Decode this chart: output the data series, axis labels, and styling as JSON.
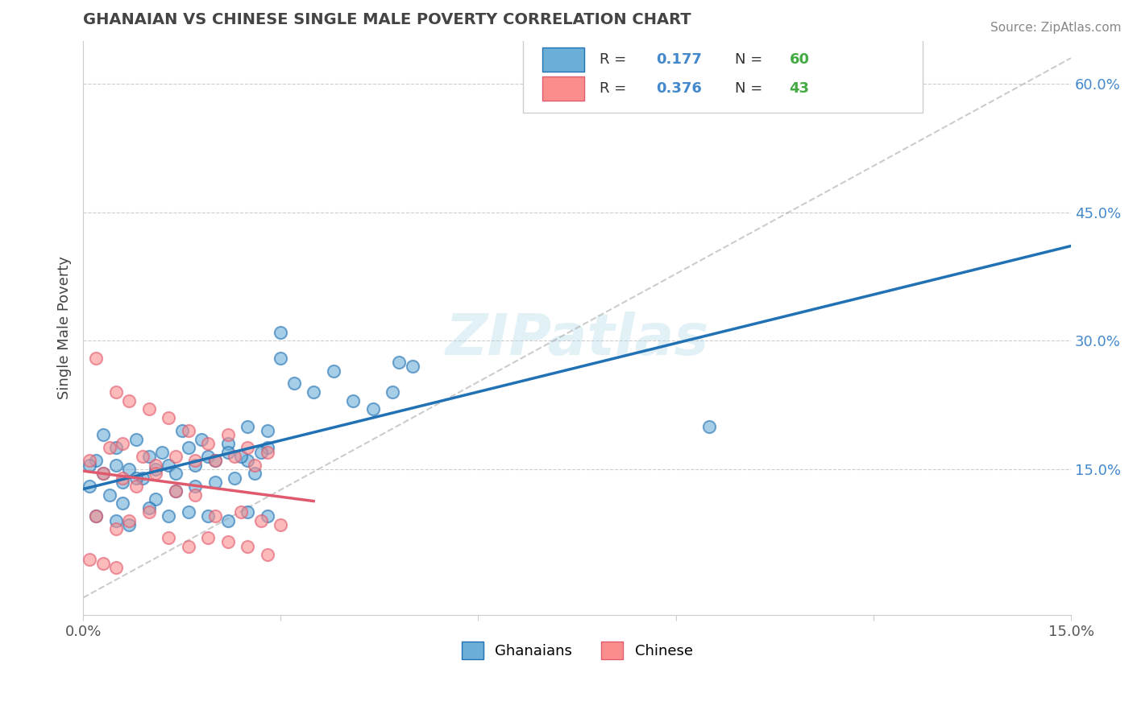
{
  "title": "GHANAIAN VS CHINESE SINGLE MALE POVERTY CORRELATION CHART",
  "source": "Source: ZipAtlas.com",
  "xlabel": "",
  "ylabel": "Single Male Poverty",
  "xlim": [
    0.0,
    0.15
  ],
  "ylim": [
    -0.02,
    0.65
  ],
  "xticks": [
    0.0,
    0.03,
    0.06,
    0.09,
    0.12,
    0.15
  ],
  "xtick_labels": [
    "0.0%",
    "",
    "",
    "",
    "",
    "15.0%"
  ],
  "yticks_right": [
    0.0,
    0.15,
    0.3,
    0.45,
    0.6
  ],
  "ytick_labels_right": [
    "",
    "15.0%",
    "30.0%",
    "45.0%",
    "60.0%"
  ],
  "blue_R": 0.177,
  "blue_N": 60,
  "pink_R": 0.376,
  "pink_N": 43,
  "blue_color": "#6baed6",
  "pink_color": "#fc8d8d",
  "blue_line_color": "#2171b5",
  "pink_line_color": "#e05a6e",
  "grid_color": "#cccccc",
  "title_color": "#444444",
  "axis_label_color": "#444444",
  "legend_R_color": "#4488cc",
  "legend_N_color": "#44aa44",
  "watermark": "ZIPatlas",
  "blue_scatter_x": [
    0.005,
    0.008,
    0.003,
    0.012,
    0.015,
    0.018,
    0.022,
    0.025,
    0.028,
    0.03,
    0.002,
    0.005,
    0.007,
    0.01,
    0.013,
    0.016,
    0.019,
    0.022,
    0.025,
    0.028,
    0.001,
    0.004,
    0.006,
    0.009,
    0.011,
    0.014,
    0.017,
    0.02,
    0.023,
    0.026,
    0.003,
    0.006,
    0.008,
    0.011,
    0.014,
    0.017,
    0.02,
    0.024,
    0.027,
    0.03,
    0.002,
    0.005,
    0.007,
    0.01,
    0.013,
    0.016,
    0.019,
    0.022,
    0.025,
    0.028,
    0.048,
    0.032,
    0.035,
    0.038,
    0.041,
    0.044,
    0.047,
    0.05,
    0.095,
    0.001
  ],
  "blue_scatter_y": [
    0.175,
    0.185,
    0.19,
    0.17,
    0.195,
    0.185,
    0.18,
    0.2,
    0.195,
    0.28,
    0.16,
    0.155,
    0.15,
    0.165,
    0.155,
    0.175,
    0.165,
    0.17,
    0.16,
    0.175,
    0.13,
    0.12,
    0.11,
    0.14,
    0.115,
    0.125,
    0.13,
    0.135,
    0.14,
    0.145,
    0.145,
    0.135,
    0.14,
    0.15,
    0.145,
    0.155,
    0.16,
    0.165,
    0.17,
    0.31,
    0.095,
    0.09,
    0.085,
    0.105,
    0.095,
    0.1,
    0.095,
    0.09,
    0.1,
    0.095,
    0.275,
    0.25,
    0.24,
    0.265,
    0.23,
    0.22,
    0.24,
    0.27,
    0.2,
    0.155
  ],
  "pink_scatter_x": [
    0.002,
    0.005,
    0.007,
    0.01,
    0.013,
    0.016,
    0.019,
    0.022,
    0.025,
    0.028,
    0.001,
    0.004,
    0.006,
    0.009,
    0.011,
    0.014,
    0.017,
    0.02,
    0.023,
    0.026,
    0.003,
    0.006,
    0.008,
    0.011,
    0.014,
    0.017,
    0.02,
    0.024,
    0.027,
    0.03,
    0.002,
    0.005,
    0.007,
    0.01,
    0.013,
    0.016,
    0.019,
    0.022,
    0.025,
    0.028,
    0.001,
    0.003,
    0.005
  ],
  "pink_scatter_y": [
    0.28,
    0.24,
    0.23,
    0.22,
    0.21,
    0.195,
    0.18,
    0.19,
    0.175,
    0.17,
    0.16,
    0.175,
    0.18,
    0.165,
    0.155,
    0.165,
    0.16,
    0.16,
    0.165,
    0.155,
    0.145,
    0.14,
    0.13,
    0.145,
    0.125,
    0.12,
    0.095,
    0.1,
    0.09,
    0.085,
    0.095,
    0.08,
    0.09,
    0.1,
    0.07,
    0.06,
    0.07,
    0.065,
    0.06,
    0.05,
    0.045,
    0.04,
    0.035
  ]
}
